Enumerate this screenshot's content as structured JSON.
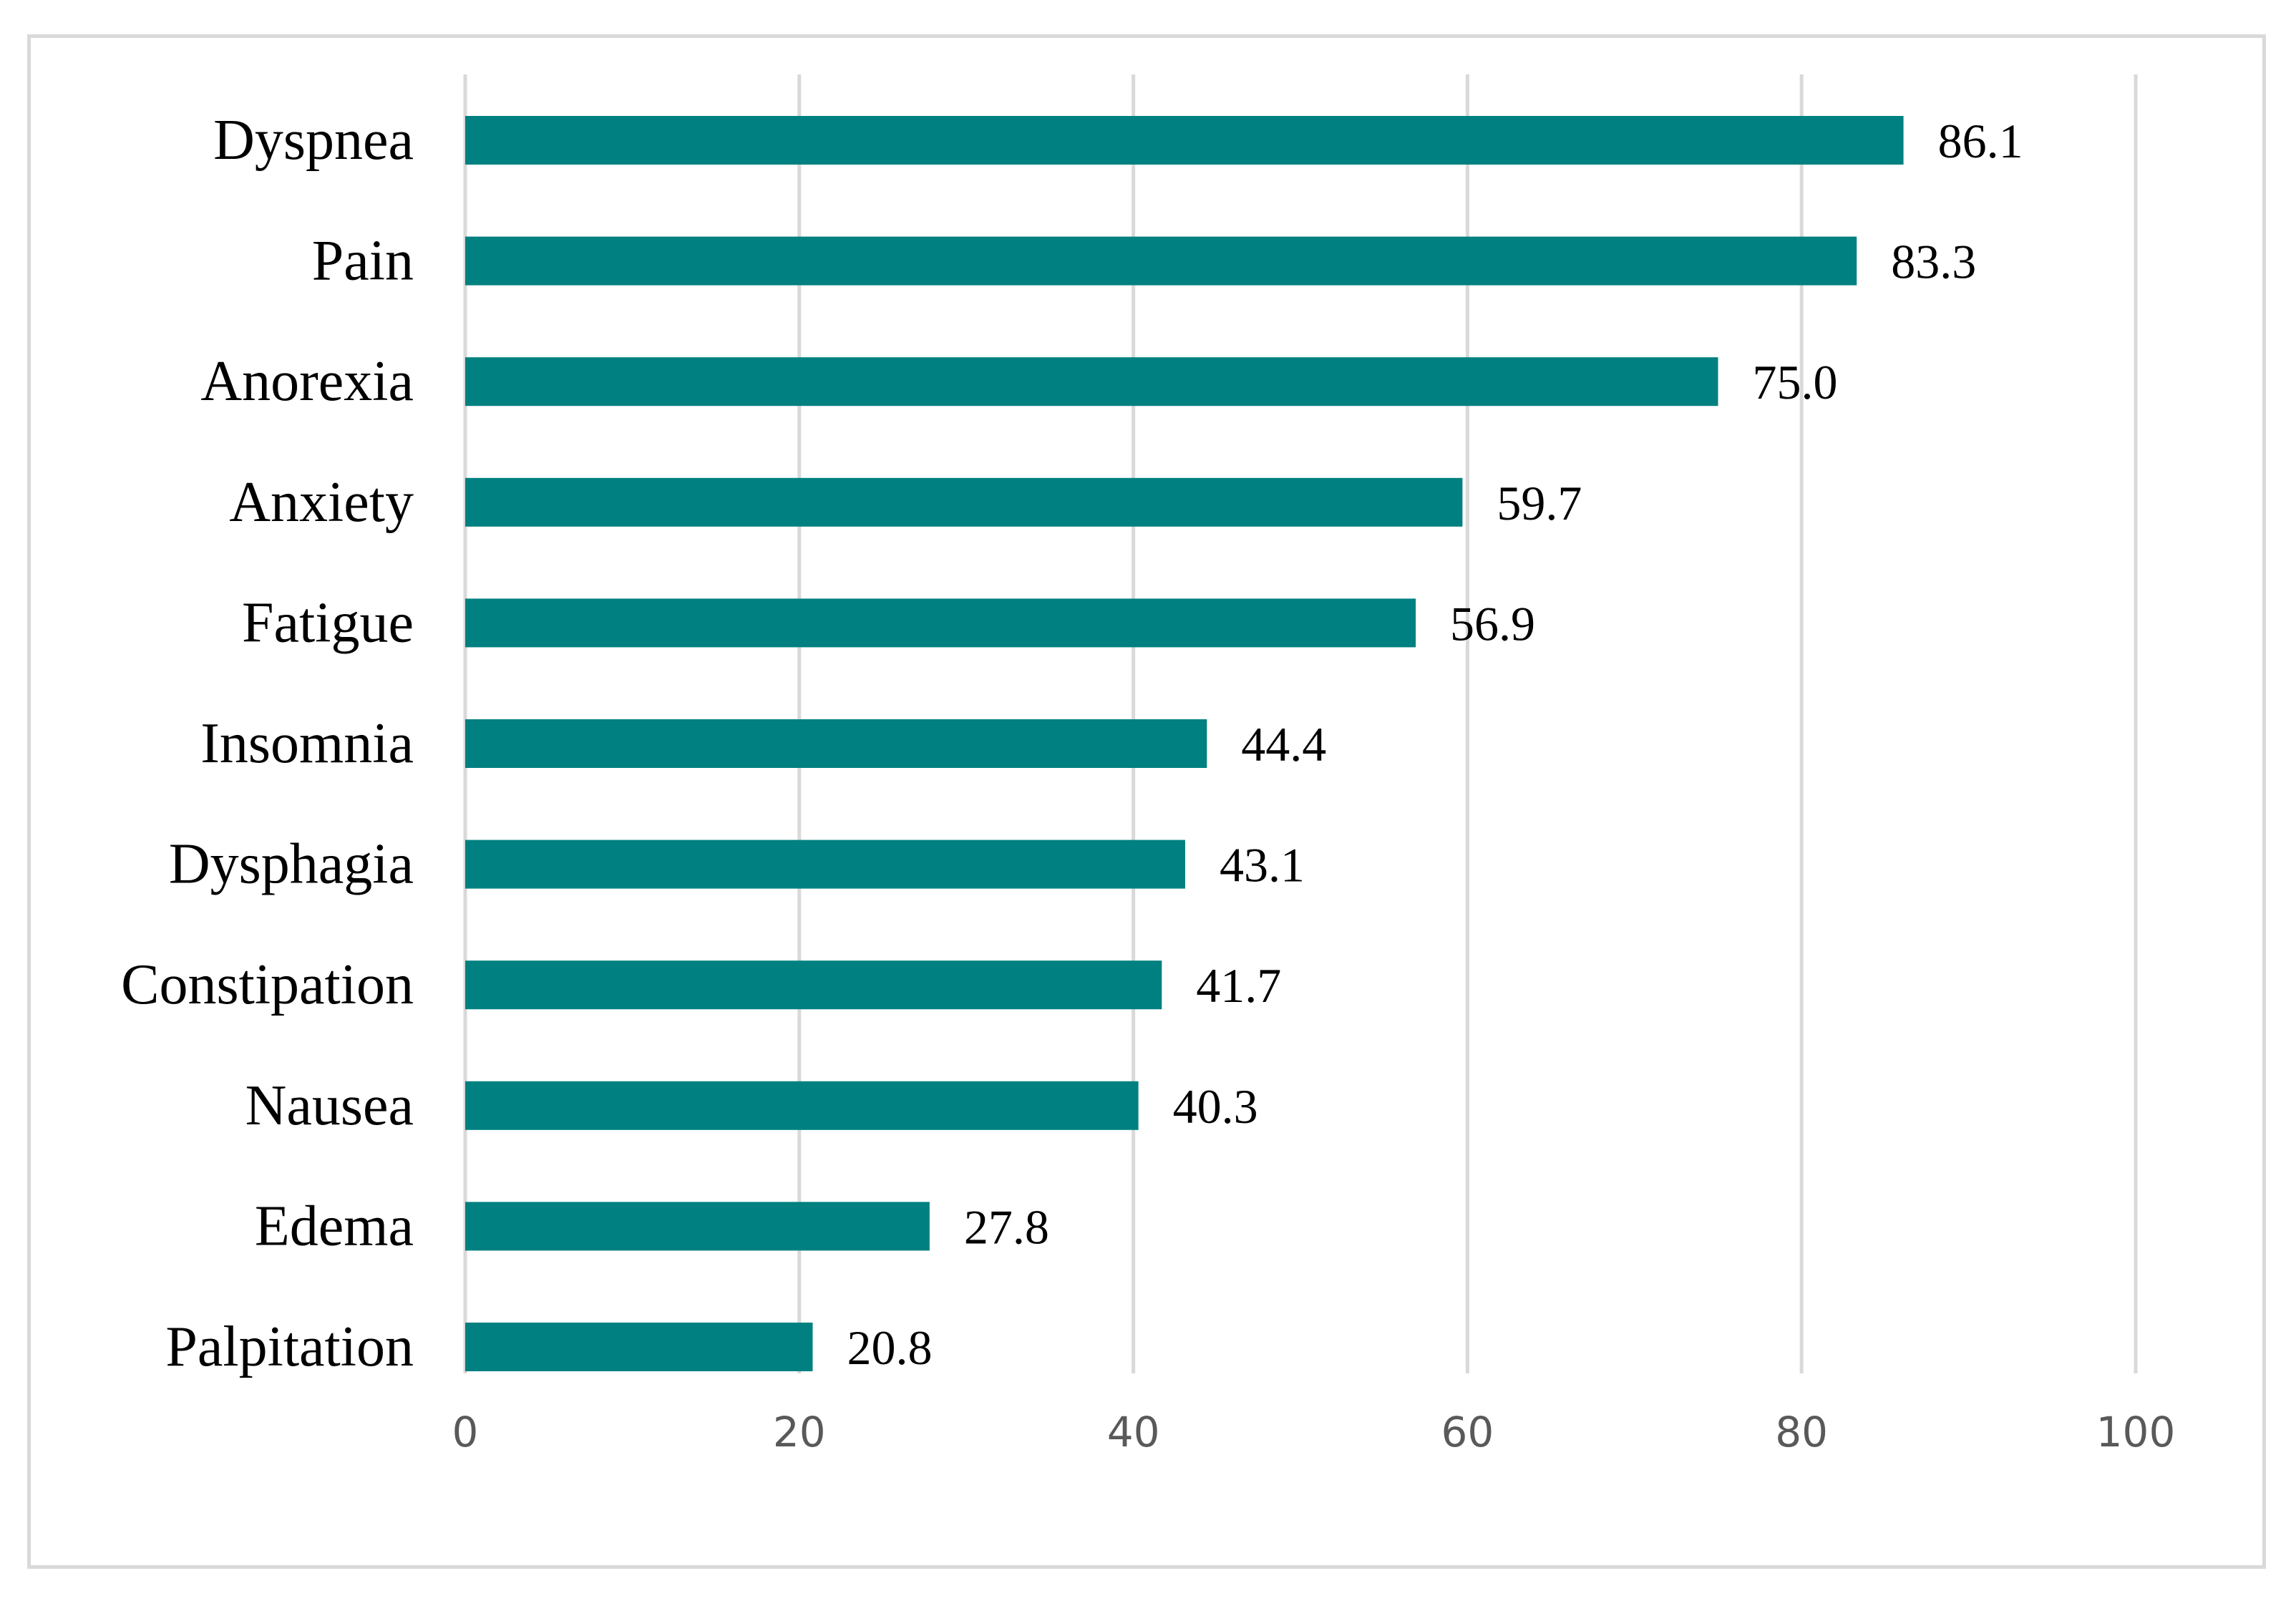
{
  "chart_data": {
    "type": "bar",
    "orientation": "horizontal",
    "categories": [
      "Dyspnea",
      "Pain",
      "Anorexia",
      "Anxiety",
      "Fatigue",
      "Insomnia",
      "Dysphagia",
      "Constipation",
      "Nausea",
      "Edema",
      "Palpitation"
    ],
    "values": [
      86.1,
      83.3,
      75.0,
      59.7,
      56.9,
      44.4,
      43.1,
      41.7,
      40.3,
      27.8,
      20.8
    ],
    "value_labels": [
      "86.1",
      "83.3",
      "75.0",
      "59.7",
      "56.9",
      "44.4",
      "43.1",
      "41.7",
      "40.3",
      "27.8",
      "20.8"
    ],
    "title": "",
    "xlabel": "",
    "ylabel": "",
    "xlim": [
      0,
      100
    ],
    "x_ticks": [
      0,
      20,
      40,
      60,
      80,
      100
    ],
    "x_tick_labels": [
      "0",
      "20",
      "40",
      "60",
      "80",
      "100"
    ],
    "grid": "vertical",
    "legend": "none",
    "bar_color": "#008080",
    "grid_color": "#d9d9d9",
    "border_color": "#d9d9d9"
  }
}
